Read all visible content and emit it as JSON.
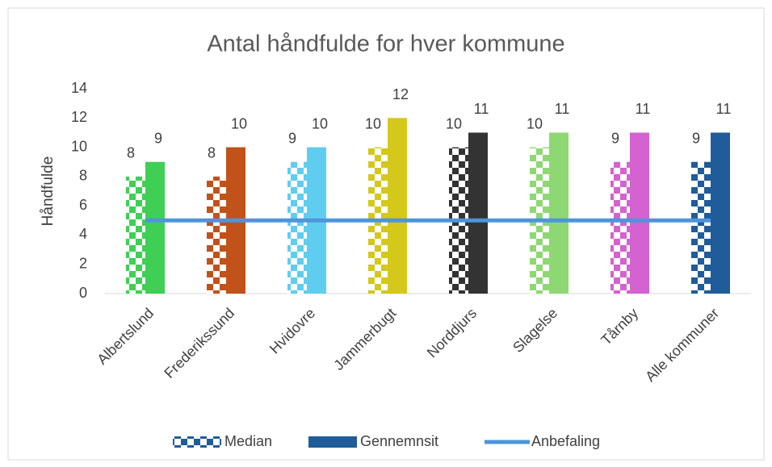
{
  "chart_data": {
    "type": "bar",
    "title": "Antal håndfulde for hver kommune",
    "y_label": "Håndfulde",
    "categories": [
      "Albertslund",
      "Frederikssund",
      "Hvidovre",
      "Jammerbugt",
      "Norddjurs",
      "Slagelse",
      "Tårnby",
      "Alle kommuner"
    ],
    "category_colors": [
      "#3fcf55",
      "#c0521a",
      "#5fcdf0",
      "#d4c81a",
      "#333333",
      "#8ed873",
      "#d462d0",
      "#1f5c99"
    ],
    "series": [
      {
        "name": "Median",
        "type": "bar",
        "pattern": "checker",
        "color": "#1f5c99",
        "values": [
          8,
          8,
          9,
          10,
          10,
          10,
          9,
          9
        ]
      },
      {
        "name": "Gennemnsit",
        "type": "bar",
        "color": "#1f5c99",
        "values": [
          9,
          10,
          10,
          12,
          11,
          11,
          11,
          11
        ]
      },
      {
        "name": "Anbefaling",
        "type": "line",
        "color": "#4e95d9",
        "values": [
          5,
          5,
          5,
          5,
          5,
          5,
          5,
          5
        ]
      }
    ],
    "ylim": [
      0,
      14
    ],
    "yticks": [
      0,
      2,
      4,
      6,
      8,
      10,
      12,
      14
    ],
    "grid": false,
    "legend": "bottom"
  }
}
